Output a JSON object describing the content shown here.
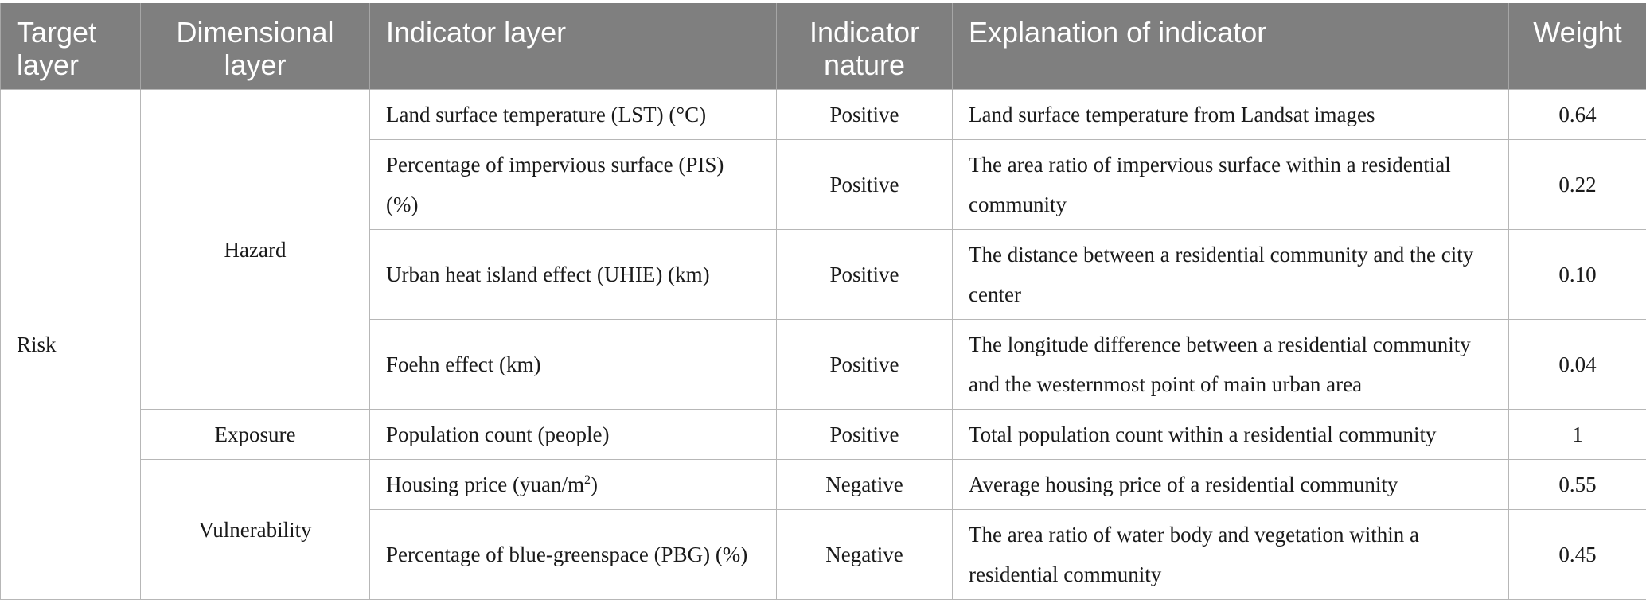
{
  "table": {
    "headers": {
      "target": "Target layer",
      "dimensional": "Dimensional layer",
      "indicator": "Indicator layer",
      "nature": "Indicator nature",
      "explanation": "Explanation of indicator",
      "weight": "Weight"
    },
    "target_layer": "Risk",
    "dimensions": {
      "hazard": "Hazard",
      "exposure": "Exposure",
      "vulnerability": "Vulnerability"
    },
    "rows": [
      {
        "indicator": "Land surface temperature (LST) (°C)",
        "nature": "Positive",
        "explanation": "Land surface temperature from Landsat images",
        "weight": "0.64"
      },
      {
        "indicator": "Percentage of impervious surface (PIS) (%)",
        "nature": "Positive",
        "explanation": "The area ratio of impervious surface within a residential community",
        "weight": "0.22"
      },
      {
        "indicator": "Urban heat island effect (UHIE) (km)",
        "nature": "Positive",
        "explanation": "The distance between a residential community and the city center",
        "weight": "0.10"
      },
      {
        "indicator": "Foehn effect (km)",
        "nature": "Positive",
        "explanation": "The longitude difference between a residential community and the westernmost point of main urban area",
        "weight": "0.04"
      },
      {
        "indicator": "Population count (people)",
        "nature": "Positive",
        "explanation": "Total population count within a residential community",
        "weight": "1"
      },
      {
        "indicator_prefix": "Housing price (yuan/m",
        "indicator_sup": "2",
        "indicator_suffix": ")",
        "nature": "Negative",
        "explanation": "Average housing price of a residential community",
        "weight": "0.55"
      },
      {
        "indicator": "Percentage of blue-greenspace (PBG) (%)",
        "nature": "Negative",
        "explanation": "The area ratio of water body and vegetation within a residential community",
        "weight": "0.45"
      }
    ]
  },
  "colors": {
    "header_bg": "#7f7f7f",
    "header_text": "#ffffff",
    "grid_line": "#b7b7b7",
    "body_text": "#1a1a1a"
  }
}
